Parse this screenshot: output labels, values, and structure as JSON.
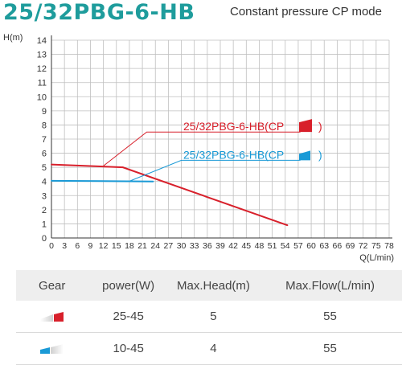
{
  "header": {
    "title": "25/32PBG-6-HB",
    "subtitle": "Constant pressure CP mode"
  },
  "colors": {
    "accent": "#1e9c9c",
    "cp_high": "#d8202b",
    "cp_low": "#1a9ad6"
  },
  "chart_data": {
    "type": "line",
    "ylabel": "H(m)",
    "xlabel": "Q(L/min)",
    "xlim": [
      0,
      78
    ],
    "ylim": [
      0,
      14
    ],
    "xticks": [
      "0",
      "3",
      "6",
      "9",
      "12",
      "15",
      "18",
      "21",
      "24",
      "27",
      "30",
      "33",
      "36",
      "39",
      "42",
      "45",
      "48",
      "51",
      "54",
      "57",
      "60",
      "63",
      "66",
      "69",
      "72",
      "75",
      "78"
    ],
    "yticks": [
      "0",
      "1",
      "2",
      "3",
      "4",
      "5",
      "6",
      "7",
      "8",
      "9",
      "10",
      "11",
      "12",
      "13",
      "14"
    ],
    "grid": true,
    "series": [
      {
        "name": "25/32PBG-6-HB(CP",
        "suffix": ")",
        "color": "#d8202b",
        "points": [
          [
            0,
            5.2
          ],
          [
            16.5,
            5.0
          ],
          [
            54.5,
            0.9
          ]
        ],
        "label_anchor": [
          12,
          5.1
        ]
      },
      {
        "name": "25/32PBG-6-HB(CP",
        "suffix": ")",
        "color": "#1a9ad6",
        "points": [
          [
            0,
            4.05
          ],
          [
            23.5,
            4.0
          ]
        ],
        "label_anchor": [
          18,
          4.02
        ]
      }
    ]
  },
  "table": {
    "headers": [
      "Gear",
      "power(W)",
      "Max.Head(m)",
      "Max.Flow(L/min)"
    ],
    "rows": [
      {
        "icon": "gear-high-icon",
        "power": "25-45",
        "head": "5",
        "flow": "55"
      },
      {
        "icon": "gear-low-icon",
        "power": "10-45",
        "head": "4",
        "flow": "55"
      }
    ]
  }
}
